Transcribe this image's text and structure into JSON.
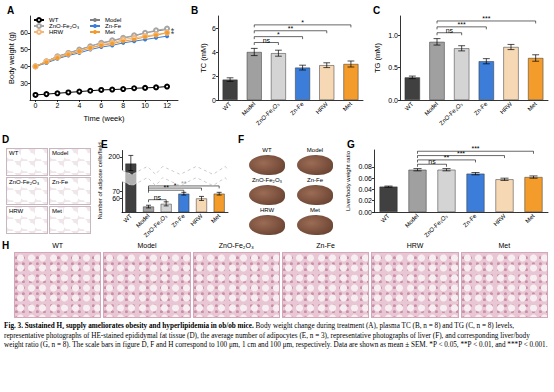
{
  "chart_data": [
    {
      "title": "A",
      "type": "line",
      "x_label": "Time (week)",
      "y_label": "Body weight (g)",
      "x": [
        0,
        1,
        2,
        3,
        4,
        5,
        6,
        7,
        8,
        9,
        10,
        11,
        12
      ],
      "xlim": [
        -0.5,
        13
      ],
      "xticks": [
        0,
        2,
        4,
        6,
        8,
        10,
        12
      ],
      "ylim": [
        20,
        70
      ],
      "yticks": [
        30,
        40,
        50,
        60
      ],
      "grid": false,
      "legend": "upper left",
      "series": [
        {
          "name": "WT",
          "color": "#000000",
          "marker": "open circle",
          "values": [
            23,
            23.5,
            24,
            24.5,
            25,
            25.5,
            26,
            26.2,
            26.5,
            27,
            27.2,
            27.5,
            28
          ]
        },
        {
          "name": "Model",
          "color": "#808080",
          "marker": "circle",
          "values": [
            40,
            43,
            46,
            48,
            50,
            52,
            54,
            55,
            57,
            58,
            60,
            61,
            62
          ]
        },
        {
          "name": "ZnO-Fe₂O₃",
          "color": "#a6a6a6",
          "marker": "open circle",
          "values": [
            40,
            43,
            46,
            48,
            50,
            52,
            54,
            55.5,
            57,
            58.5,
            60,
            61.5,
            62.5
          ]
        },
        {
          "name": "Zn-Fe",
          "color": "#3b7dd8",
          "marker": "circle",
          "values": [
            40,
            42,
            44.5,
            46.5,
            48,
            50,
            51.5,
            52.5,
            54,
            55,
            56,
            57,
            58
          ]
        },
        {
          "name": "HRW",
          "color": "#f3b77a",
          "marker": "open circle",
          "values": [
            40,
            43,
            45.5,
            47.5,
            49,
            51,
            53,
            54,
            56,
            57,
            58,
            59,
            60
          ]
        },
        {
          "name": "Met",
          "color": "#f39c2b",
          "marker": "circle",
          "values": [
            40,
            42.5,
            45,
            47,
            49,
            51,
            52.5,
            53.5,
            55,
            56,
            57.5,
            58.5,
            60
          ]
        }
      ],
      "annotations": [
        {
          "label": "*",
          "x": 12.5,
          "y": 61
        },
        {
          "label": "*",
          "x": 12.5,
          "y": 59
        }
      ]
    },
    {
      "title": "B",
      "type": "bar",
      "y_label": "TC (mM)",
      "categories": [
        "WT",
        "Model",
        "ZnO-Fe₂O₃",
        "Zn-Fe",
        "HRW",
        "Met"
      ],
      "values": [
        1.7,
        4.0,
        3.9,
        2.7,
        2.9,
        3.0
      ],
      "errors": [
        0.15,
        0.3,
        0.25,
        0.2,
        0.2,
        0.25
      ],
      "colors": [
        "#404040",
        "#a0a0a0",
        "#d4d4d4",
        "#3b7dd8",
        "#f7d8b5",
        "#f39c2b"
      ],
      "ylim": [
        0,
        7
      ],
      "yticks": [
        0,
        2,
        4,
        6
      ],
      "grid": false,
      "significance": [
        {
          "from": "Model",
          "to": "ZnO-Fe₂O₃",
          "label": "ns"
        },
        {
          "from": "Model",
          "to": "Zn-Fe",
          "label": "*"
        },
        {
          "from": "Model",
          "to": "HRW",
          "label": "**"
        },
        {
          "from": "Model",
          "to": "Met",
          "label": "*"
        }
      ]
    },
    {
      "title": "C",
      "type": "bar",
      "y_label": "TG (mM)",
      "categories": [
        "WT",
        "Model",
        "ZnO-Fe₂O₃",
        "Zn-Fe",
        "HRW",
        "Met"
      ],
      "values": [
        0.35,
        0.9,
        0.8,
        0.6,
        0.82,
        0.65
      ],
      "errors": [
        0.02,
        0.05,
        0.04,
        0.04,
        0.04,
        0.05
      ],
      "colors": [
        "#404040",
        "#a0a0a0",
        "#d4d4d4",
        "#3b7dd8",
        "#f7d8b5",
        "#f39c2b"
      ],
      "ylim": [
        0,
        1.3
      ],
      "yticks": [
        {
          "value": 0,
          "label": "0.0"
        },
        0.5,
        {
          "value": 1,
          "label": "1.0"
        }
      ],
      "grid": false,
      "significance": [
        {
          "from": "Model",
          "to": "ZnO-Fe₂O₃",
          "label": "ns"
        },
        {
          "from": "Model",
          "to": "Zn-Fe",
          "label": "***"
        },
        {
          "from": "Model",
          "to": "Met",
          "label": "***"
        }
      ]
    },
    {
      "title": "E",
      "type": "bar",
      "y_label": "Number of adipose cells/field",
      "categories": [
        "WT",
        "Model",
        "ZnO-Fe₂O₃",
        "Zn-Fe",
        "HRW",
        "Met"
      ],
      "values": [
        190,
        48,
        52,
        67,
        60,
        67
      ],
      "errors": [
        12,
        2,
        3,
        2,
        3,
        2
      ],
      "colors": [
        "#404040",
        "#a0a0a0",
        "#d4d4d4",
        "#3b7dd8",
        "#f7d8b5",
        "#f39c2b"
      ],
      "ylim": [
        40,
        210
      ],
      "yticks": [
        50,
        60,
        70,
        200
      ],
      "ybreaks": [
        [
          85,
          180
        ]
      ],
      "grid": false,
      "significance": [
        {
          "from": "Model",
          "to": "ZnO-Fe₂O₃",
          "label": "ns"
        },
        {
          "from": "Model",
          "to": "Zn-Fe",
          "label": "**"
        },
        {
          "from": "Model",
          "to": "HRW",
          "label": "*"
        },
        {
          "from": "Model",
          "to": "Met",
          "label": "**"
        }
      ]
    },
    {
      "title": "G",
      "type": "bar",
      "y_label": "Liver/body weight ratio",
      "categories": [
        "WT",
        "Model",
        "ZnO-Fe₂O₃",
        "Zn-Fe",
        "HRW",
        "Met"
      ],
      "values": [
        0.045,
        0.075,
        0.075,
        0.068,
        0.058,
        0.062
      ],
      "errors": [
        0.001,
        0.002,
        0.002,
        0.002,
        0.002,
        0.002
      ],
      "colors": [
        "#404040",
        "#a0a0a0",
        "#d4d4d4",
        "#3b7dd8",
        "#f7d8b5",
        "#f39c2b"
      ],
      "ylim": [
        0,
        0.11
      ],
      "yticks": [
        {
          "value": 0,
          "label": "0.00"
        },
        {
          "value": 0.02,
          "label": "0.02"
        },
        {
          "value": 0.04,
          "label": "0.04"
        },
        {
          "value": 0.06,
          "label": "0.06"
        },
        {
          "value": 0.08,
          "label": "0.08"
        }
      ],
      "grid": false,
      "significance": [
        {
          "from": "Model",
          "to": "ZnO-Fe₂O₃",
          "label": "ns"
        },
        {
          "from": "Model",
          "to": "Zn-Fe",
          "label": "**"
        },
        {
          "from": "Model",
          "to": "HRW",
          "label": "***"
        },
        {
          "from": "Model",
          "to": "Met",
          "label": "***"
        }
      ]
    }
  ],
  "photo_panels": [
    {
      "panel": "D",
      "labels": [
        "WT",
        "Model",
        "ZnO-Fe₂O₃",
        "Zn-Fe",
        "HRW",
        "Met"
      ]
    },
    {
      "panel": "F",
      "labels": [
        "WT",
        "Model",
        "ZnO-Fe₂O₃",
        "Zn-Fe",
        "HRW",
        "Met"
      ]
    },
    {
      "panel": "H",
      "labels": [
        "WT",
        "Model",
        "ZnO-Fe₂O₃",
        "Zn-Fe",
        "HRW",
        "Met"
      ]
    }
  ],
  "caption": {
    "title": "Fig. 3. Sustained H₂ supply ameliorates obesity and hyperlipidemia in ob/ob mice.",
    "text": "Body weight change during treatment (A), plasma TC (B, n = 8) and TG (C, n = 8) levels, representative photographs of HE-stained epididymal fat tissue (D), the average number of adipocytes (E, n = 3), representative photographs of liver (F), and corresponding liver/body weight ratio (G, n = 8). The scale bars in figure D, F and H correspond to 100 μm, 1 cm and 100 μm, respectively. Data are shown as mean ± SEM. *P < 0.05, **P < 0.01, and ***P < 0.001."
  }
}
